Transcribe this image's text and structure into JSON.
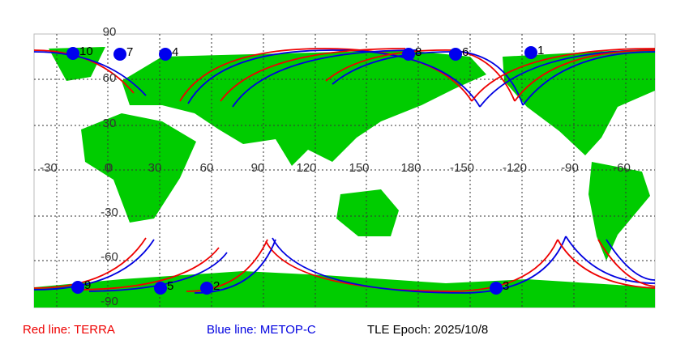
{
  "map": {
    "lat_labels": [
      "90",
      "60",
      "30",
      "0",
      "-30",
      "-60",
      "-90"
    ],
    "lon_labels": [
      "-30",
      "0",
      "30",
      "60",
      "90",
      "120",
      "150",
      "180",
      "-150",
      "-120",
      "-90",
      "-60"
    ],
    "points": [
      "10",
      "7",
      "4",
      "8",
      "6",
      "1",
      "9",
      "5",
      "2",
      "3"
    ],
    "legend": {
      "red": "Red line: TERRA",
      "blue": "Blue line: METOP-C",
      "epoch": "TLE Epoch: 2025/10/8"
    }
  }
}
